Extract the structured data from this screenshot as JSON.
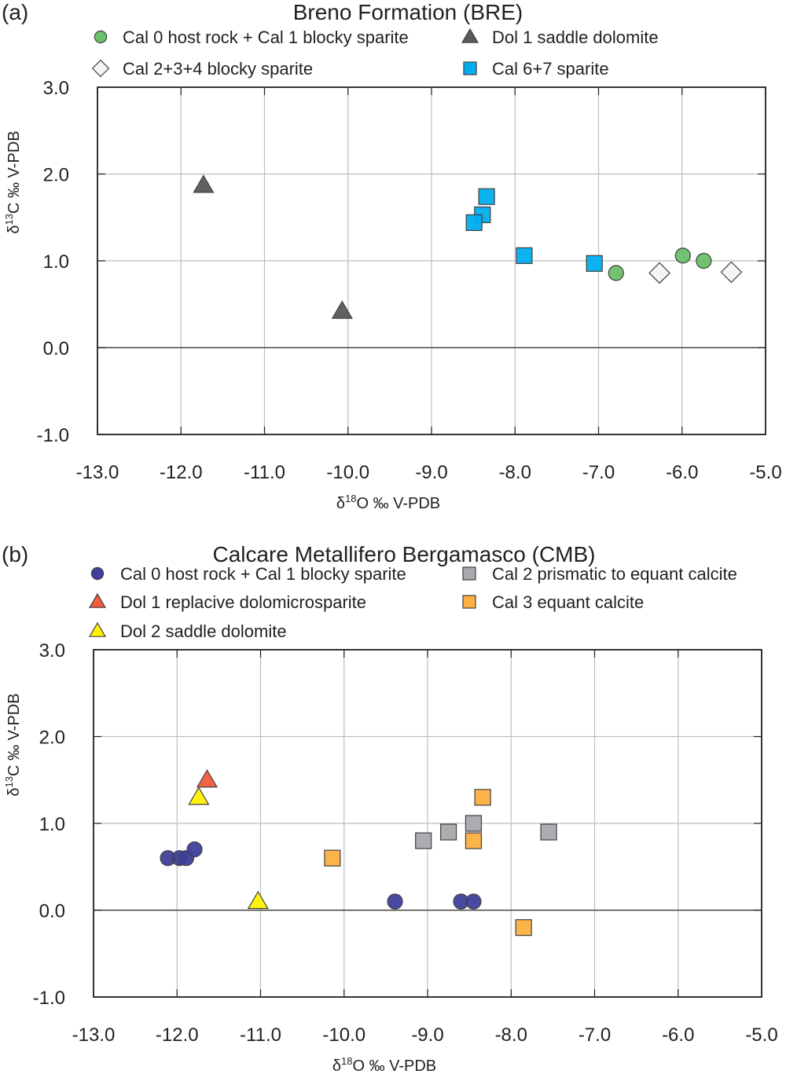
{
  "chart_data": [
    {
      "type": "scatter",
      "panel_label": "(a)",
      "title": "Breno Formation (BRE)",
      "xlabel": "δ18O ‰ V-PDB",
      "ylabel": "δ13C ‰ V-PDB",
      "xlim": [
        -13.0,
        -5.0
      ],
      "ylim": [
        -1.0,
        3.0
      ],
      "xticks": [
        "-13.0",
        "-12.0",
        "-11.0",
        "-10.0",
        "-9.0",
        "-8.0",
        "-7.0",
        "-6.0",
        "-5.0"
      ],
      "yticks": [
        "-1.0",
        "0.0",
        "1.0",
        "2.0",
        "3.0"
      ],
      "grid": true,
      "legend_placement": "top",
      "series": [
        {
          "name": "Cal 0 host rock + Cal 1 blocky sparite",
          "marker": "circle",
          "color": "#6abf69",
          "points": [
            [
              -6.79,
              0.86
            ],
            [
              -5.99,
              1.06
            ],
            [
              -5.74,
              1.0
            ]
          ]
        },
        {
          "name": "Dol 1 saddle dolomite",
          "marker": "triangle",
          "color": "#58595b",
          "points": [
            [
              -11.73,
              1.87
            ],
            [
              -10.07,
              0.42
            ]
          ]
        },
        {
          "name": "Cal 2+3+4 blocky sparite",
          "marker": "diamond",
          "color": "#f4f4f4",
          "points": [
            [
              -6.27,
              0.86
            ],
            [
              -5.41,
              0.87
            ]
          ]
        },
        {
          "name": "Cal 6+7 sparite",
          "marker": "square",
          "color": "#00aeef",
          "points": [
            [
              -8.34,
              1.74
            ],
            [
              -8.39,
              1.53
            ],
            [
              -8.49,
              1.44
            ],
            [
              -7.89,
              1.06
            ],
            [
              -7.05,
              0.97
            ]
          ]
        }
      ]
    },
    {
      "type": "scatter",
      "panel_label": "(b)",
      "title": "Calcare Metallifero Bergamasco (CMB)",
      "xlabel": "δ18O ‰ V-PDB",
      "ylabel": "δ13C ‰ V-PDB",
      "xlim": [
        -13.0,
        -5.0
      ],
      "ylim": [
        -1.0,
        3.0
      ],
      "xticks": [
        "-13.0",
        "-12.0",
        "-11.0",
        "-10.0",
        "-9.0",
        "-8.0",
        "-7.0",
        "-6.0",
        "-5.0"
      ],
      "yticks": [
        "-1.0",
        "0.0",
        "1.0",
        "2.0",
        "3.0"
      ],
      "grid": true,
      "legend_placement": "top",
      "series": [
        {
          "name": "Cal 0 host rock + Cal 1 blocky sparite",
          "marker": "circle",
          "color": "#3f3f9b",
          "points": [
            [
              -12.11,
              0.6
            ],
            [
              -11.97,
              0.6
            ],
            [
              -11.89,
              0.6
            ],
            [
              -11.79,
              0.7
            ],
            [
              -9.39,
              0.1
            ],
            [
              -8.6,
              0.1
            ],
            [
              -8.45,
              0.1
            ]
          ]
        },
        {
          "name": "Cal 2 prismatic to equant calcite",
          "marker": "square",
          "color": "#a7a9ac",
          "points": [
            [
              -9.05,
              0.8
            ],
            [
              -8.75,
              0.9
            ],
            [
              -8.45,
              1.0
            ],
            [
              -7.55,
              0.9
            ]
          ]
        },
        {
          "name": "Dol 1 replacive dolomicrosparite",
          "marker": "triangle",
          "color": "#f15a3a",
          "points": [
            [
              -11.64,
              1.5
            ]
          ]
        },
        {
          "name": "Cal 3 equant calcite",
          "marker": "square",
          "color": "#fbb040",
          "points": [
            [
              -10.14,
              0.6
            ],
            [
              -8.34,
              1.3
            ],
            [
              -8.45,
              0.8
            ],
            [
              -7.85,
              -0.2
            ]
          ]
        },
        {
          "name": "Dol 2 saddle dolomite",
          "marker": "triangle",
          "color": "#fff200",
          "points": [
            [
              -11.74,
              1.3
            ],
            [
              -11.03,
              0.1
            ]
          ]
        }
      ]
    }
  ]
}
